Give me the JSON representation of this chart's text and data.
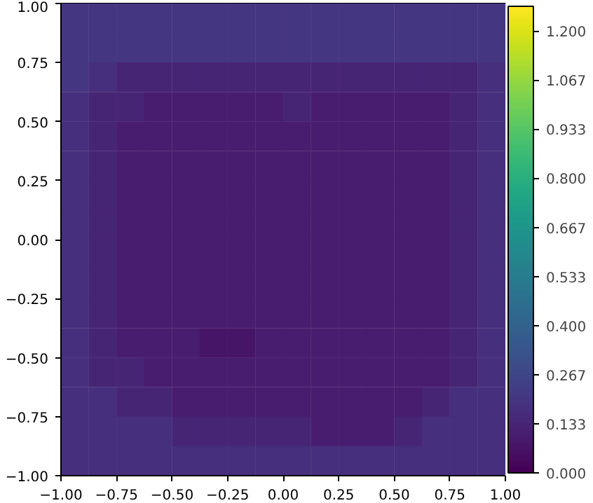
{
  "chart_data": {
    "type": "heatmap",
    "cells": [
      [
        0.2,
        0.2,
        0.2,
        0.2,
        0.2,
        0.2,
        0.2,
        0.2,
        0.2,
        0.2,
        0.2,
        0.2,
        0.2,
        0.2,
        0.2,
        0.2
      ],
      [
        0.2,
        0.2,
        0.2,
        0.2,
        0.2,
        0.2,
        0.2,
        0.2,
        0.2,
        0.2,
        0.2,
        0.2,
        0.2,
        0.2,
        0.2,
        0.2
      ],
      [
        0.2,
        0.17,
        0.13,
        0.13,
        0.13,
        0.13,
        0.13,
        0.13,
        0.13,
        0.13,
        0.13,
        0.13,
        0.13,
        0.13,
        0.13,
        0.17
      ],
      [
        0.17,
        0.13,
        0.13,
        0.1,
        0.1,
        0.1,
        0.1,
        0.1,
        0.13,
        0.1,
        0.1,
        0.1,
        0.1,
        0.1,
        0.13,
        0.17
      ],
      [
        0.17,
        0.13,
        0.1,
        0.1,
        0.1,
        0.1,
        0.1,
        0.1,
        0.1,
        0.1,
        0.1,
        0.1,
        0.1,
        0.1,
        0.13,
        0.17
      ],
      [
        0.17,
        0.13,
        0.1,
        0.1,
        0.1,
        0.1,
        0.1,
        0.1,
        0.1,
        0.1,
        0.1,
        0.1,
        0.1,
        0.1,
        0.13,
        0.17
      ],
      [
        0.17,
        0.13,
        0.1,
        0.1,
        0.1,
        0.1,
        0.1,
        0.1,
        0.1,
        0.1,
        0.1,
        0.1,
        0.1,
        0.1,
        0.13,
        0.17
      ],
      [
        0.17,
        0.13,
        0.1,
        0.1,
        0.1,
        0.1,
        0.1,
        0.1,
        0.1,
        0.1,
        0.1,
        0.1,
        0.1,
        0.1,
        0.13,
        0.17
      ],
      [
        0.17,
        0.13,
        0.1,
        0.1,
        0.1,
        0.1,
        0.1,
        0.1,
        0.1,
        0.1,
        0.1,
        0.1,
        0.1,
        0.1,
        0.13,
        0.17
      ],
      [
        0.17,
        0.13,
        0.1,
        0.1,
        0.1,
        0.1,
        0.1,
        0.1,
        0.1,
        0.1,
        0.1,
        0.1,
        0.1,
        0.1,
        0.13,
        0.17
      ],
      [
        0.17,
        0.13,
        0.1,
        0.1,
        0.1,
        0.1,
        0.1,
        0.1,
        0.1,
        0.1,
        0.1,
        0.1,
        0.1,
        0.1,
        0.13,
        0.17
      ],
      [
        0.17,
        0.13,
        0.1,
        0.1,
        0.1,
        0.07,
        0.07,
        0.1,
        0.1,
        0.1,
        0.1,
        0.1,
        0.1,
        0.1,
        0.13,
        0.17
      ],
      [
        0.17,
        0.13,
        0.13,
        0.1,
        0.1,
        0.1,
        0.1,
        0.1,
        0.1,
        0.1,
        0.1,
        0.1,
        0.1,
        0.1,
        0.13,
        0.17
      ],
      [
        0.17,
        0.17,
        0.13,
        0.13,
        0.1,
        0.1,
        0.1,
        0.1,
        0.1,
        0.1,
        0.1,
        0.1,
        0.1,
        0.13,
        0.17,
        0.17
      ],
      [
        0.17,
        0.17,
        0.17,
        0.17,
        0.13,
        0.13,
        0.13,
        0.13,
        0.13,
        0.1,
        0.1,
        0.1,
        0.13,
        0.17,
        0.17,
        0.17
      ],
      [
        0.17,
        0.17,
        0.17,
        0.17,
        0.17,
        0.17,
        0.17,
        0.17,
        0.17,
        0.17,
        0.17,
        0.17,
        0.17,
        0.17,
        0.17,
        0.17
      ]
    ],
    "xlim": [
      -1,
      1
    ],
    "ylim": [
      -1,
      1
    ],
    "xticks": [
      {
        "value": -1,
        "label": "−1.00"
      },
      {
        "value": -0.75,
        "label": "−0.75"
      },
      {
        "value": -0.5,
        "label": "−0.50"
      },
      {
        "value": -0.25,
        "label": "−0.25"
      },
      {
        "value": 0,
        "label": "0.00"
      },
      {
        "value": 0.25,
        "label": "0.25"
      },
      {
        "value": 0.5,
        "label": "0.50"
      },
      {
        "value": 0.75,
        "label": "0.75"
      },
      {
        "value": 1,
        "label": "1.00"
      }
    ],
    "yticks": [
      {
        "value": -1,
        "label": "−1.00"
      },
      {
        "value": -0.75,
        "label": "−0.75"
      },
      {
        "value": -0.5,
        "label": "−0.50"
      },
      {
        "value": -0.25,
        "label": "−0.25"
      },
      {
        "value": 0,
        "label": "0.00"
      },
      {
        "value": 0.25,
        "label": "0.25"
      },
      {
        "value": 0.5,
        "label": "0.50"
      },
      {
        "value": 0.75,
        "label": "0.75"
      },
      {
        "value": 1,
        "label": "1.00"
      }
    ],
    "clim": [
      0,
      1.267
    ],
    "cticks": [
      {
        "value": 0,
        "label": "0.000"
      },
      {
        "value": 0.1333,
        "label": "0.133"
      },
      {
        "value": 0.2667,
        "label": "0.267"
      },
      {
        "value": 0.4,
        "label": "0.400"
      },
      {
        "value": 0.5333,
        "label": "0.533"
      },
      {
        "value": 0.6667,
        "label": "0.667"
      },
      {
        "value": 0.8,
        "label": "0.800"
      },
      {
        "value": 0.9333,
        "label": "0.933"
      },
      {
        "value": 1.0667,
        "label": "1.067"
      },
      {
        "value": 1.2,
        "label": "1.200"
      }
    ]
  }
}
